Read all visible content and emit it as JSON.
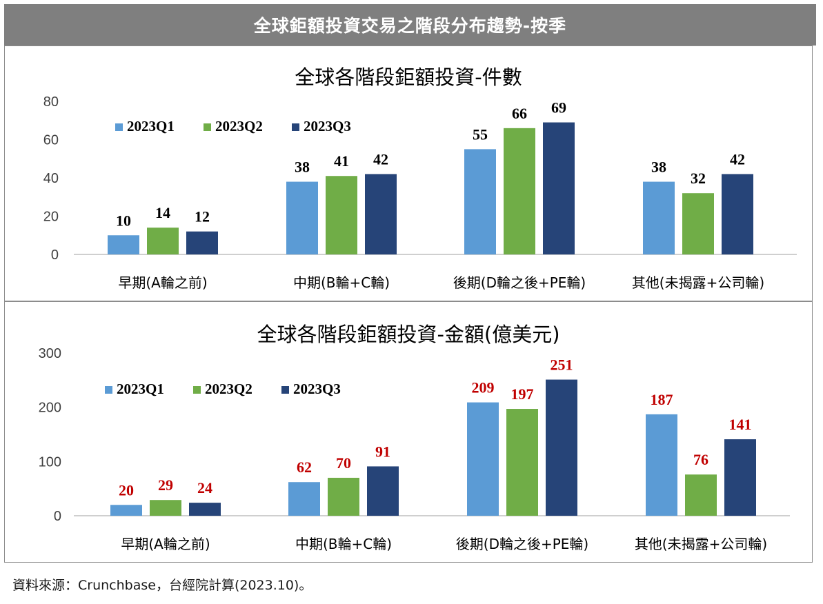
{
  "banner_title": "全球鉅額投資交易之階段分布趨勢-按季",
  "source_note": "資料來源：Crunchbase，台經院計算(2023.10)。",
  "chart_data": [
    {
      "type": "bar",
      "title": "全球各階段鉅額投資-件數",
      "categories": [
        "早期(A輪之前)",
        "中期(B輪+C輪)",
        "後期(D輪之後+PE輪)",
        "其他(未揭露+公司輪)"
      ],
      "series": [
        {
          "name": "2023Q1",
          "color": "#5b9bd5",
          "values": [
            10,
            38,
            55,
            38
          ]
        },
        {
          "name": "2023Q2",
          "color": "#70ad47",
          "values": [
            14,
            41,
            66,
            32
          ]
        },
        {
          "name": "2023Q3",
          "color": "#264478",
          "values": [
            12,
            42,
            69,
            42
          ]
        }
      ],
      "ylim": [
        0,
        80
      ],
      "yticks": [
        0,
        20,
        40,
        60,
        80
      ],
      "label_color": "#000000",
      "legend_position": "top-left",
      "grid": false
    },
    {
      "type": "bar",
      "title": "全球各階段鉅額投資-金額(億美元)",
      "categories": [
        "早期(A輪之前)",
        "中期(B輪+C輪)",
        "後期(D輪之後+PE輪)",
        "其他(未揭露+公司輪)"
      ],
      "series": [
        {
          "name": "2023Q1",
          "color": "#5b9bd5",
          "values": [
            20,
            62,
            209,
            187
          ]
        },
        {
          "name": "2023Q2",
          "color": "#70ad47",
          "values": [
            29,
            70,
            197,
            76
          ]
        },
        {
          "name": "2023Q3",
          "color": "#264478",
          "values": [
            24,
            91,
            251,
            141
          ]
        }
      ],
      "ylim": [
        0,
        300
      ],
      "yticks": [
        0,
        100,
        200,
        300
      ],
      "label_color": "#c00000",
      "legend_position": "top-left",
      "grid": false
    }
  ]
}
